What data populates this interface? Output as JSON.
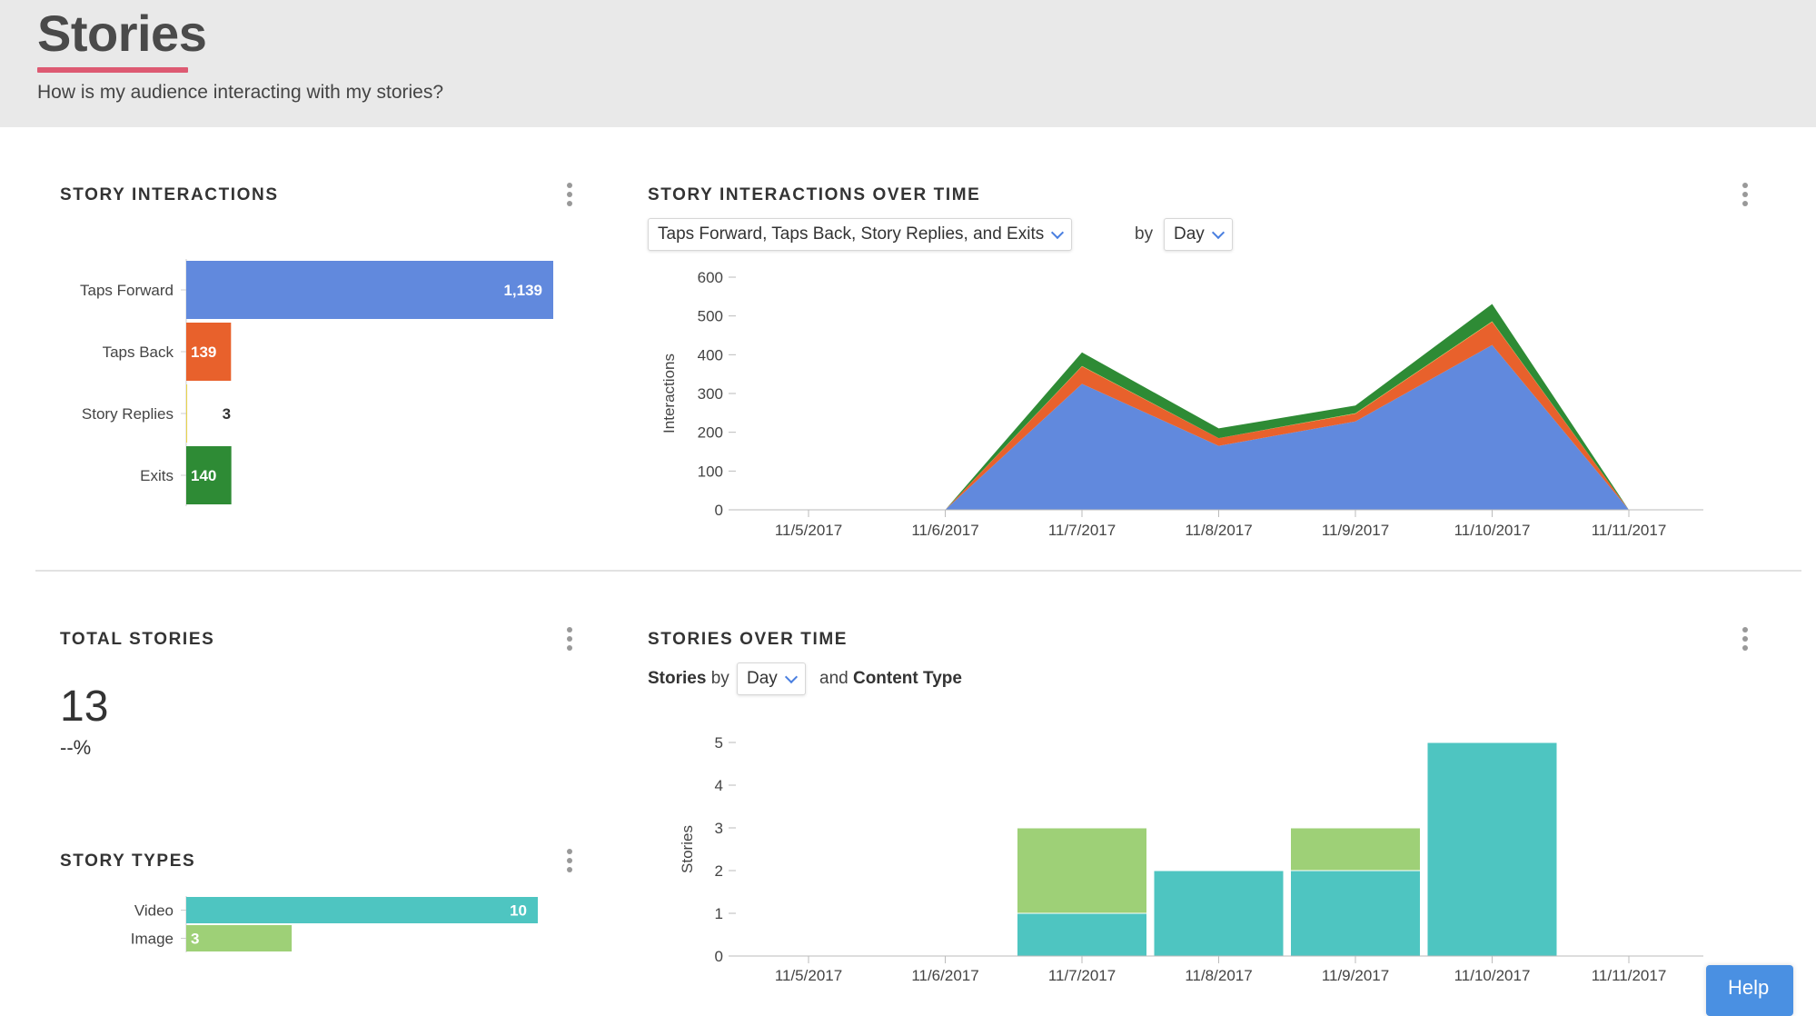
{
  "header": {
    "title": "Stories",
    "subtitle": "How is my audience interacting with my stories?"
  },
  "story_interactions": {
    "title": "STORY INTERACTIONS",
    "bars": [
      {
        "label": "Taps Forward",
        "value": 1139,
        "display": "1,139",
        "color": "#6189dd"
      },
      {
        "label": "Taps Back",
        "value": 139,
        "display": "139",
        "color": "#e8612c"
      },
      {
        "label": "Story Replies",
        "value": 3,
        "display": "3",
        "color": "#e8d44d"
      },
      {
        "label": "Exits",
        "value": 140,
        "display": "140",
        "color": "#2e8b35"
      }
    ]
  },
  "interactions_over_time": {
    "title": "STORY INTERACTIONS OVER TIME",
    "metric_dropdown": "Taps Forward, Taps Back, Story Replies, and Exits",
    "by_text": "by",
    "period_dropdown": "Day"
  },
  "total_stories": {
    "title": "TOTAL STORIES",
    "value": "13",
    "change": "--%"
  },
  "story_types": {
    "title": "STORY TYPES",
    "bars": [
      {
        "label": "Video",
        "value": 10,
        "display": "10",
        "color": "#4ec5c1"
      },
      {
        "label": "Image",
        "value": 3,
        "display": "3",
        "color": "#9ed077"
      }
    ]
  },
  "stories_over_time": {
    "title": "STORIES OVER TIME",
    "prefix": "Stories",
    "by_text": "by",
    "period_dropdown": "Day",
    "and_text": "and",
    "suffix": "Content Type"
  },
  "help": {
    "label": "Help"
  },
  "chart_data": [
    {
      "type": "area",
      "stacked": true,
      "x": [
        "11/5/2017",
        "11/6/2017",
        "11/7/2017",
        "11/8/2017",
        "11/9/2017",
        "11/10/2017",
        "11/11/2017"
      ],
      "ylabel": "Interactions",
      "ylim": [
        0,
        600
      ],
      "yticks": [
        0,
        100,
        200,
        300,
        400,
        500,
        600
      ],
      "series": [
        {
          "name": "Taps Forward",
          "color": "#6189dd",
          "values": [
            null,
            0,
            325,
            165,
            228,
            425,
            0
          ]
        },
        {
          "name": "Taps Back",
          "color": "#e8612c",
          "values": [
            null,
            0,
            45,
            20,
            20,
            60,
            0
          ]
        },
        {
          "name": "Story Replies",
          "color": "#e8d44d",
          "values": [
            null,
            0,
            1,
            0,
            1,
            1,
            0
          ]
        },
        {
          "name": "Exits",
          "color": "#2e8b35",
          "values": [
            null,
            0,
            35,
            25,
            20,
            45,
            0
          ]
        }
      ]
    },
    {
      "type": "bar",
      "stacked": true,
      "categories": [
        "11/5/2017",
        "11/6/2017",
        "11/7/2017",
        "11/8/2017",
        "11/9/2017",
        "11/10/2017",
        "11/11/2017"
      ],
      "ylabel": "Stories",
      "ylim": [
        0,
        5
      ],
      "yticks": [
        0,
        1,
        2,
        3,
        4,
        5
      ],
      "series": [
        {
          "name": "Video",
          "color": "#4ec5c1",
          "values": [
            0,
            0,
            1,
            2,
            2,
            5,
            0
          ]
        },
        {
          "name": "Image",
          "color": "#9ed077",
          "values": [
            0,
            0,
            2,
            0,
            1,
            0,
            0
          ]
        }
      ]
    }
  ]
}
